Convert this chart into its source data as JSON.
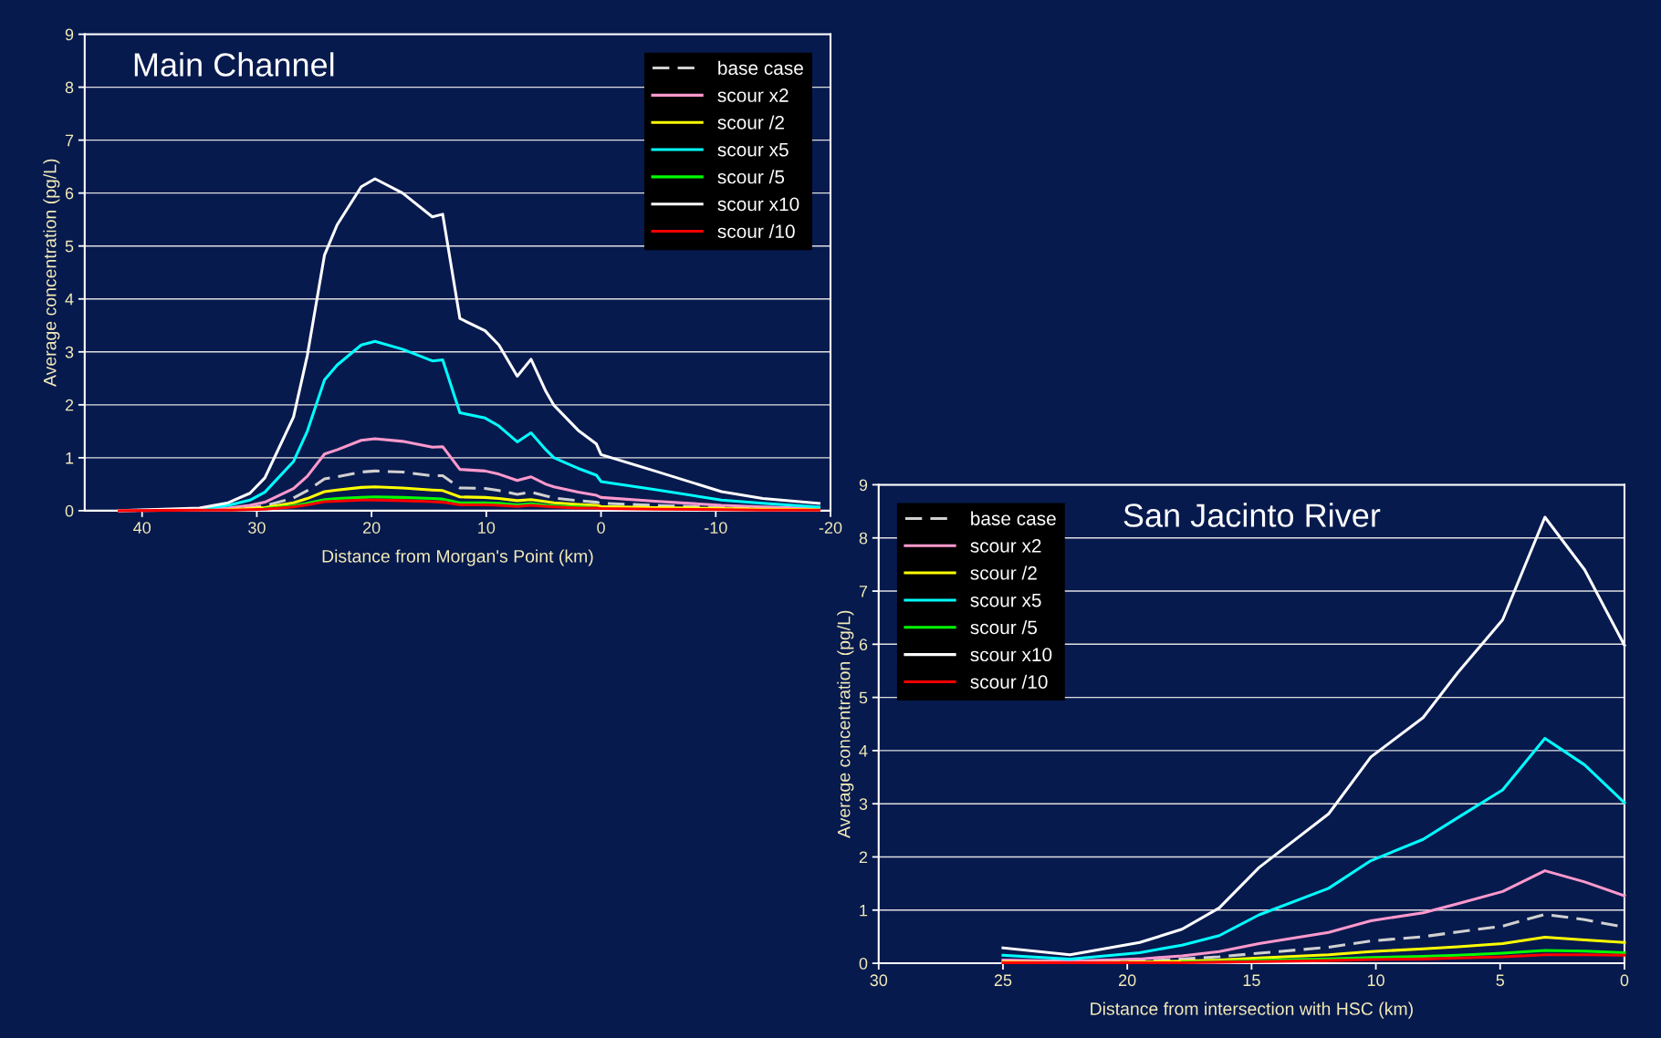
{
  "chart_data": [
    {
      "type": "line",
      "title": "Main Channel",
      "xlabel": "Distance from Morgan's Point (km)",
      "ylabel": "Average concentration (pg/L)",
      "x": [
        42,
        35,
        32.5,
        30.6,
        29.3,
        26.8,
        25.6,
        24.1,
        23,
        20.9,
        19.7,
        17.3,
        14.7,
        13.8,
        12.3,
        10.1,
        8.9,
        7.3,
        6.1,
        4.8,
        4.1,
        2.0,
        0.4,
        0,
        -4.7,
        -10.5,
        -14.1,
        -19
      ],
      "xlim": [
        45,
        -20
      ],
      "xticks": [
        40,
        30,
        20,
        10,
        0,
        -10,
        -20
      ],
      "ylim": [
        0,
        9
      ],
      "yticks": [
        0,
        1,
        2,
        3,
        4,
        5,
        6,
        7,
        8,
        9
      ],
      "grid": "y",
      "legend": "top right",
      "marker": "none",
      "series": [
        {
          "name": "base case",
          "color": "#d0d0d0",
          "line_style": "dashed",
          "values": [
            0,
            0.01,
            0.03,
            0.06,
            0.09,
            0.24,
            0.38,
            0.6,
            0.64,
            0.73,
            0.75,
            0.73,
            0.66,
            0.66,
            0.43,
            0.42,
            0.38,
            0.31,
            0.35,
            0.28,
            0.24,
            0.19,
            0.16,
            0.14,
            0.1,
            0.06,
            0.04,
            0.02
          ]
        },
        {
          "name": "scour x2",
          "color": "#ff99cc",
          "line_style": "solid",
          "values": [
            0,
            0.02,
            0.05,
            0.1,
            0.16,
            0.42,
            0.65,
            1.07,
            1.15,
            1.33,
            1.36,
            1.31,
            1.2,
            1.21,
            0.78,
            0.75,
            0.69,
            0.57,
            0.64,
            0.5,
            0.45,
            0.35,
            0.29,
            0.25,
            0.18,
            0.1,
            0.07,
            0.04
          ]
        },
        {
          "name": "scour /2",
          "color": "#ffff00",
          "line_style": "solid",
          "values": [
            null,
            null,
            0.02,
            0.04,
            0.06,
            0.15,
            0.23,
            0.36,
            0.39,
            0.44,
            0.45,
            0.43,
            0.39,
            0.38,
            0.26,
            0.25,
            0.23,
            0.19,
            0.21,
            0.17,
            0.15,
            0.12,
            0.1,
            0.08,
            0.06,
            0.04,
            0.03,
            0.02
          ]
        },
        {
          "name": "scour x5",
          "color": "#00ffff",
          "line_style": "solid",
          "values": [
            0,
            0.03,
            0.1,
            0.2,
            0.35,
            0.93,
            1.5,
            2.47,
            2.75,
            3.13,
            3.2,
            3.05,
            2.83,
            2.85,
            1.85,
            1.75,
            1.6,
            1.3,
            1.47,
            1.15,
            1.0,
            0.8,
            0.67,
            0.55,
            0.4,
            0.2,
            0.14,
            0.07
          ]
        },
        {
          "name": "scour /5",
          "color": "#00ff00",
          "line_style": "solid",
          "values": [
            null,
            null,
            null,
            null,
            0.04,
            0.09,
            0.14,
            0.21,
            0.23,
            0.25,
            0.26,
            0.25,
            0.23,
            0.22,
            0.15,
            0.15,
            0.14,
            0.11,
            0.13,
            0.1,
            0.09,
            0.07,
            0.06,
            null,
            null,
            null,
            null,
            null
          ]
        },
        {
          "name": "scour x10",
          "color": "#ffffff",
          "line_style": "solid",
          "values": [
            0,
            0.05,
            0.15,
            0.33,
            0.62,
            1.77,
            2.93,
            4.83,
            5.4,
            6.12,
            6.27,
            6.0,
            5.55,
            5.6,
            3.63,
            3.4,
            3.13,
            2.54,
            2.86,
            2.25,
            1.99,
            1.52,
            1.26,
            1.06,
            0.75,
            0.36,
            0.23,
            0.14
          ]
        },
        {
          "name": "scour /10",
          "color": "#ff0000",
          "line_style": "solid",
          "values": [
            0,
            0.01,
            0.01,
            0.02,
            0.03,
            0.07,
            0.11,
            0.17,
            0.18,
            0.2,
            0.2,
            0.19,
            0.17,
            0.16,
            0.11,
            0.11,
            0.1,
            0.08,
            0.1,
            0.08,
            0.07,
            0.05,
            0.05,
            0.04,
            0.03,
            0.02,
            0.01,
            0.01
          ]
        }
      ]
    },
    {
      "type": "line",
      "title": "San Jacinto River",
      "xlabel": "Distance from intersection with HSC (km)",
      "ylabel": "Average concentration (pg/L)",
      "x": [
        25,
        22.3,
        19.5,
        17.8,
        16.3,
        14.7,
        11.9,
        10.2,
        8.1,
        6.7,
        4.9,
        3.2,
        1.6,
        0
      ],
      "xlim": [
        30,
        0
      ],
      "xticks": [
        30,
        25,
        20,
        15,
        10,
        5,
        0
      ],
      "ylim": [
        0,
        9
      ],
      "yticks": [
        0,
        1,
        2,
        3,
        4,
        5,
        6,
        7,
        8,
        9
      ],
      "grid": "y",
      "legend": "top left",
      "marker": "none",
      "series": [
        {
          "name": "base case",
          "color": "#d0d0d0",
          "line_style": "dashed",
          "values": [
            0.03,
            0.02,
            0.04,
            0.08,
            0.12,
            0.19,
            0.3,
            0.42,
            0.5,
            0.59,
            0.7,
            0.92,
            0.82,
            0.68
          ]
        },
        {
          "name": "scour x2",
          "color": "#ff99cc",
          "line_style": "solid",
          "values": [
            0.06,
            0.04,
            0.08,
            0.14,
            0.22,
            0.37,
            0.58,
            0.8,
            0.95,
            1.12,
            1.35,
            1.74,
            1.53,
            1.27
          ]
        },
        {
          "name": "scour /2",
          "color": "#ffff00",
          "line_style": "solid",
          "values": [
            0.02,
            0.01,
            0.02,
            0.04,
            0.06,
            0.1,
            0.16,
            0.22,
            0.27,
            0.31,
            0.37,
            0.49,
            0.44,
            0.39
          ]
        },
        {
          "name": "scour x5",
          "color": "#00ffff",
          "line_style": "solid",
          "values": [
            0.15,
            0.08,
            0.2,
            0.34,
            0.52,
            0.91,
            1.41,
            1.93,
            2.33,
            2.74,
            3.26,
            4.23,
            3.73,
            3.02
          ]
        },
        {
          "name": "scour /5",
          "color": "#00ff00",
          "line_style": "solid",
          "values": [
            null,
            null,
            null,
            0.02,
            0.03,
            0.05,
            0.08,
            0.11,
            0.13,
            0.15,
            0.19,
            0.24,
            0.23,
            0.2
          ]
        },
        {
          "name": "scour x10",
          "color": "#ffffff",
          "line_style": "solid",
          "values": [
            0.29,
            0.16,
            0.39,
            0.64,
            1.04,
            1.8,
            2.81,
            3.88,
            4.62,
            5.47,
            6.46,
            8.39,
            7.4,
            5.98
          ]
        },
        {
          "name": "scour /10",
          "color": "#ff0000",
          "line_style": "solid",
          "values": [
            0.01,
            0.01,
            0.01,
            0.01,
            0.02,
            0.03,
            0.05,
            0.07,
            0.08,
            0.1,
            0.12,
            0.16,
            0.16,
            0.15
          ]
        }
      ]
    }
  ]
}
